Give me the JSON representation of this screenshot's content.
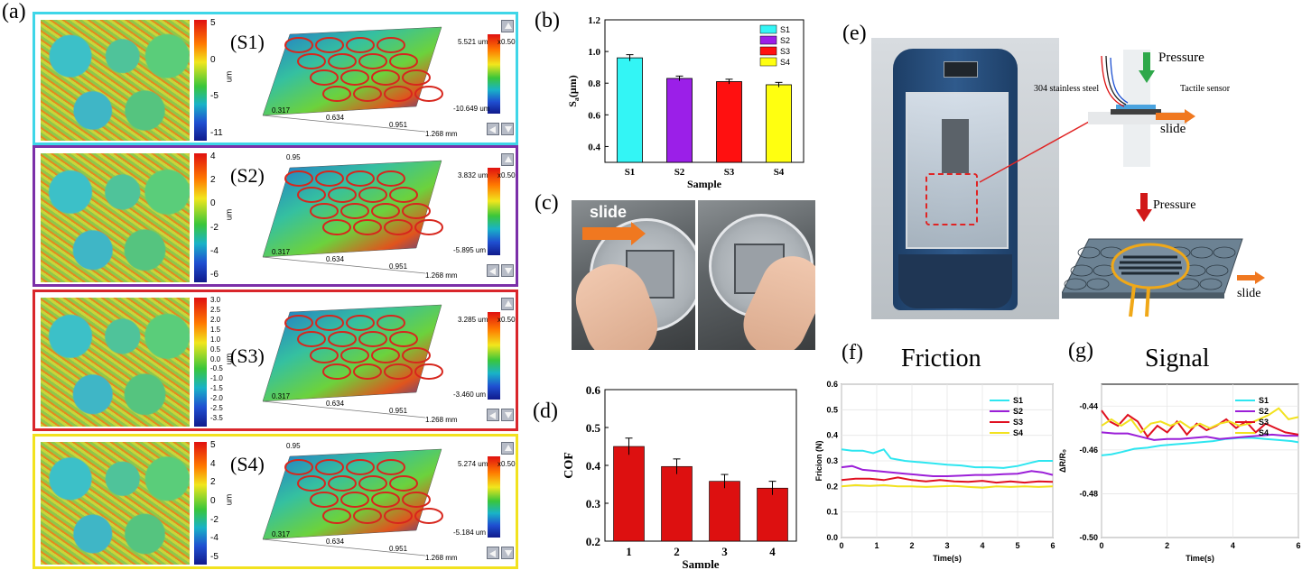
{
  "panel_a": {
    "label": "(a)",
    "samples": [
      {
        "id": "S1",
        "label": "(S1)",
        "border": "#3fd6e8",
        "cbar_ticks": [
          "5",
          "0",
          "-5",
          "-11"
        ],
        "unit": "um",
        "top_val": "5.521 um",
        "bot_val": "-10.649 um",
        "zoom": "x0.50",
        "axis": [
          "0.317",
          "0.634",
          "0.951",
          "1.268 mm"
        ]
      },
      {
        "id": "S2",
        "label": "(S2)",
        "border": "#7b2fa8",
        "cbar_ticks": [
          "4",
          "2",
          "0",
          "-2",
          "-4",
          "-6"
        ],
        "unit": "um",
        "top_val": "3.832 um",
        "bot_val": "-5.895 um",
        "zoom": "x0.50",
        "axis": [
          "0.317",
          "0.634",
          "0.951",
          "1.268 mm"
        ],
        "corner": "0.95"
      },
      {
        "id": "S3",
        "label": "(S3)",
        "border": "#d9262b",
        "cbar_ticks": [
          "3.0",
          "2.5",
          "2.0",
          "1.5",
          "1.0",
          "0.5",
          "0.0",
          "-0.5",
          "-1.0",
          "-1.5",
          "-2.0",
          "-2.5",
          "-3.5"
        ],
        "unit": "um",
        "top_val": "3.285 um",
        "bot_val": "-3.460 um",
        "zoom": "x0.50",
        "axis": [
          "0.317",
          "0.634",
          "0.951",
          "1.268 mm"
        ]
      },
      {
        "id": "S4",
        "label": "(S4)",
        "border": "#f2e21f",
        "cbar_ticks": [
          "5",
          "4",
          "2",
          "0",
          "-2",
          "-4",
          "-5"
        ],
        "unit": "um",
        "top_val": "5.274 um",
        "bot_val": "-5.184 um",
        "zoom": "x0.50",
        "axis": [
          "0.317",
          "0.634",
          "0.951",
          "1.268 mm"
        ],
        "corner": "0.95"
      }
    ]
  },
  "panel_b": {
    "label": "(b)",
    "xlabel": "Sample",
    "ylabel_main": "S",
    "ylabel_sub": "a",
    "ylabel_unit": "(μm)"
  },
  "panel_c": {
    "label": "(c)",
    "slide_text": "slide"
  },
  "panel_d": {
    "label": "(d)",
    "xlabel": "Sample",
    "ylabel": "COF"
  },
  "panel_e": {
    "label": "(e)",
    "pressure_top": "Pressure",
    "steel_label": "304 stainless steel",
    "sensor_label": "Tactile sensor",
    "slide_top": "slide",
    "pressure_bottom": "Pressure",
    "slide_bottom": "slide"
  },
  "panel_f": {
    "label": "(f)",
    "title": "Friction",
    "xlabel": "Time(s)",
    "ylabel": "Fricion (N)"
  },
  "panel_g": {
    "label": "(g)",
    "title": "Signal",
    "xlabel": "Time(s)",
    "ylabel": "ΔR/R₀"
  },
  "chart_data": [
    {
      "id": "b",
      "type": "bar",
      "categories": [
        "S1",
        "S2",
        "S3",
        "S4"
      ],
      "values": [
        0.96,
        0.83,
        0.81,
        0.79
      ],
      "errors": [
        0.02,
        0.015,
        0.015,
        0.015
      ],
      "colors": [
        "#33f5f5",
        "#9b1fe8",
        "#ff1010",
        "#ffff10"
      ],
      "legend": [
        "S1",
        "S2",
        "S3",
        "S4"
      ],
      "legend_position": "top-right",
      "xlabel": "Sample",
      "ylim": [
        0.3,
        1.2
      ],
      "yticks": [
        "0.4",
        "0.6",
        "0.8",
        "1.0",
        "1.2"
      ]
    },
    {
      "id": "d",
      "type": "bar",
      "categories": [
        "1",
        "2",
        "3",
        "4"
      ],
      "values": [
        0.45,
        0.397,
        0.358,
        0.34
      ],
      "errors": [
        0.022,
        0.02,
        0.018,
        0.018
      ],
      "color": "#dd1010",
      "xlabel": "Sample",
      "ylabel": "COF",
      "ylim": [
        0.2,
        0.6
      ],
      "yticks": [
        "0.2",
        "0.3",
        "0.4",
        "0.5",
        "0.6"
      ]
    },
    {
      "id": "f",
      "type": "line",
      "title": "Friction",
      "xlabel": "Time(s)",
      "ylabel": "Fricion (N)",
      "xlim": [
        0,
        6
      ],
      "ylim": [
        0,
        0.6
      ],
      "xticks": [
        "0",
        "1",
        "2",
        "3",
        "4",
        "5",
        "6"
      ],
      "yticks": [
        "0.0",
        "0.1",
        "0.2",
        "0.3",
        "0.4",
        "0.5",
        "0.6"
      ],
      "grid": true,
      "legend_position": "top-right",
      "series": [
        {
          "name": "S1",
          "color": "#2ee6f0",
          "x": [
            0,
            0.3,
            0.6,
            0.9,
            1.2,
            1.4,
            1.8,
            2.2,
            2.6,
            3.0,
            3.4,
            3.8,
            4.2,
            4.6,
            5.0,
            5.3,
            5.6,
            6.0
          ],
          "y": [
            0.345,
            0.34,
            0.34,
            0.33,
            0.345,
            0.31,
            0.3,
            0.295,
            0.29,
            0.285,
            0.282,
            0.275,
            0.275,
            0.272,
            0.28,
            0.29,
            0.3,
            0.3
          ]
        },
        {
          "name": "S2",
          "color": "#9b1fd8",
          "x": [
            0,
            0.3,
            0.6,
            1.0,
            1.4,
            1.8,
            2.2,
            2.6,
            3.0,
            3.4,
            3.8,
            4.2,
            4.6,
            5.0,
            5.4,
            5.7,
            6.0
          ],
          "y": [
            0.275,
            0.28,
            0.265,
            0.26,
            0.255,
            0.25,
            0.245,
            0.24,
            0.24,
            0.242,
            0.245,
            0.245,
            0.248,
            0.25,
            0.26,
            0.255,
            0.245
          ]
        },
        {
          "name": "S3",
          "color": "#e01020",
          "x": [
            0,
            0.4,
            0.8,
            1.2,
            1.6,
            2.0,
            2.4,
            2.8,
            3.2,
            3.6,
            4.0,
            4.4,
            4.8,
            5.2,
            5.6,
            6.0
          ],
          "y": [
            0.225,
            0.23,
            0.23,
            0.225,
            0.235,
            0.225,
            0.22,
            0.225,
            0.22,
            0.218,
            0.222,
            0.215,
            0.22,
            0.215,
            0.22,
            0.218
          ]
        },
        {
          "name": "S4",
          "color": "#f2e21f",
          "x": [
            0,
            0.4,
            0.8,
            1.2,
            1.6,
            2.0,
            2.4,
            2.8,
            3.2,
            3.6,
            4.0,
            4.4,
            4.8,
            5.2,
            5.6,
            6.0
          ],
          "y": [
            0.2,
            0.205,
            0.202,
            0.205,
            0.2,
            0.2,
            0.198,
            0.2,
            0.202,
            0.198,
            0.195,
            0.2,
            0.198,
            0.2,
            0.198,
            0.2
          ]
        }
      ]
    },
    {
      "id": "g",
      "type": "line",
      "title": "Signal",
      "xlabel": "Time(s)",
      "ylabel": "ΔR/R₀",
      "xlim": [
        0,
        6
      ],
      "ylim": [
        -0.5,
        -0.43
      ],
      "xticks": [
        "0",
        "2",
        "4",
        "6"
      ],
      "yticks": [
        "-0.50",
        "-0.48",
        "-0.46",
        "-0.44"
      ],
      "grid": true,
      "legend_position": "top-right",
      "series": [
        {
          "name": "S1",
          "color": "#2ee6f0",
          "x": [
            0,
            0.3,
            0.6,
            1.0,
            1.4,
            1.8,
            2.2,
            2.6,
            3.0,
            3.4,
            3.8,
            4.2,
            4.6,
            5.0,
            5.4,
            5.8,
            6.0
          ],
          "y": [
            -0.4625,
            -0.462,
            -0.461,
            -0.4595,
            -0.459,
            -0.458,
            -0.4575,
            -0.457,
            -0.4565,
            -0.456,
            -0.455,
            -0.4545,
            -0.4545,
            -0.455,
            -0.4555,
            -0.456,
            -0.4565
          ]
        },
        {
          "name": "S2",
          "color": "#9b1fd8",
          "x": [
            0,
            0.4,
            0.8,
            1.2,
            1.6,
            2.0,
            2.4,
            2.8,
            3.2,
            3.6,
            4.0,
            4.4,
            4.8,
            5.2,
            5.6,
            6.0
          ],
          "y": [
            -0.452,
            -0.4525,
            -0.4525,
            -0.454,
            -0.4555,
            -0.455,
            -0.455,
            -0.4545,
            -0.454,
            -0.455,
            -0.4545,
            -0.454,
            -0.4535,
            -0.453,
            -0.4535,
            -0.4535
          ]
        },
        {
          "name": "S3",
          "color": "#e01020",
          "x": [
            0,
            0.25,
            0.5,
            0.8,
            1.1,
            1.4,
            1.7,
            2.0,
            2.3,
            2.6,
            2.9,
            3.2,
            3.5,
            3.8,
            4.1,
            4.4,
            4.7,
            5.0,
            5.3,
            5.6,
            6.0
          ],
          "y": [
            -0.442,
            -0.447,
            -0.449,
            -0.444,
            -0.447,
            -0.454,
            -0.449,
            -0.452,
            -0.447,
            -0.453,
            -0.448,
            -0.451,
            -0.449,
            -0.446,
            -0.45,
            -0.447,
            -0.452,
            -0.448,
            -0.45,
            -0.452,
            -0.453
          ]
        },
        {
          "name": "S4",
          "color": "#f2e21f",
          "x": [
            0,
            0.3,
            0.6,
            0.9,
            1.2,
            1.5,
            1.8,
            2.1,
            2.4,
            2.7,
            3.0,
            3.3,
            3.6,
            3.9,
            4.2,
            4.5,
            4.8,
            5.1,
            5.4,
            5.7,
            6.0
          ],
          "y": [
            -0.449,
            -0.446,
            -0.449,
            -0.446,
            -0.452,
            -0.448,
            -0.447,
            -0.449,
            -0.447,
            -0.45,
            -0.448,
            -0.45,
            -0.448,
            -0.447,
            -0.449,
            -0.448,
            -0.446,
            -0.444,
            -0.441,
            -0.446,
            -0.445
          ]
        }
      ]
    }
  ]
}
